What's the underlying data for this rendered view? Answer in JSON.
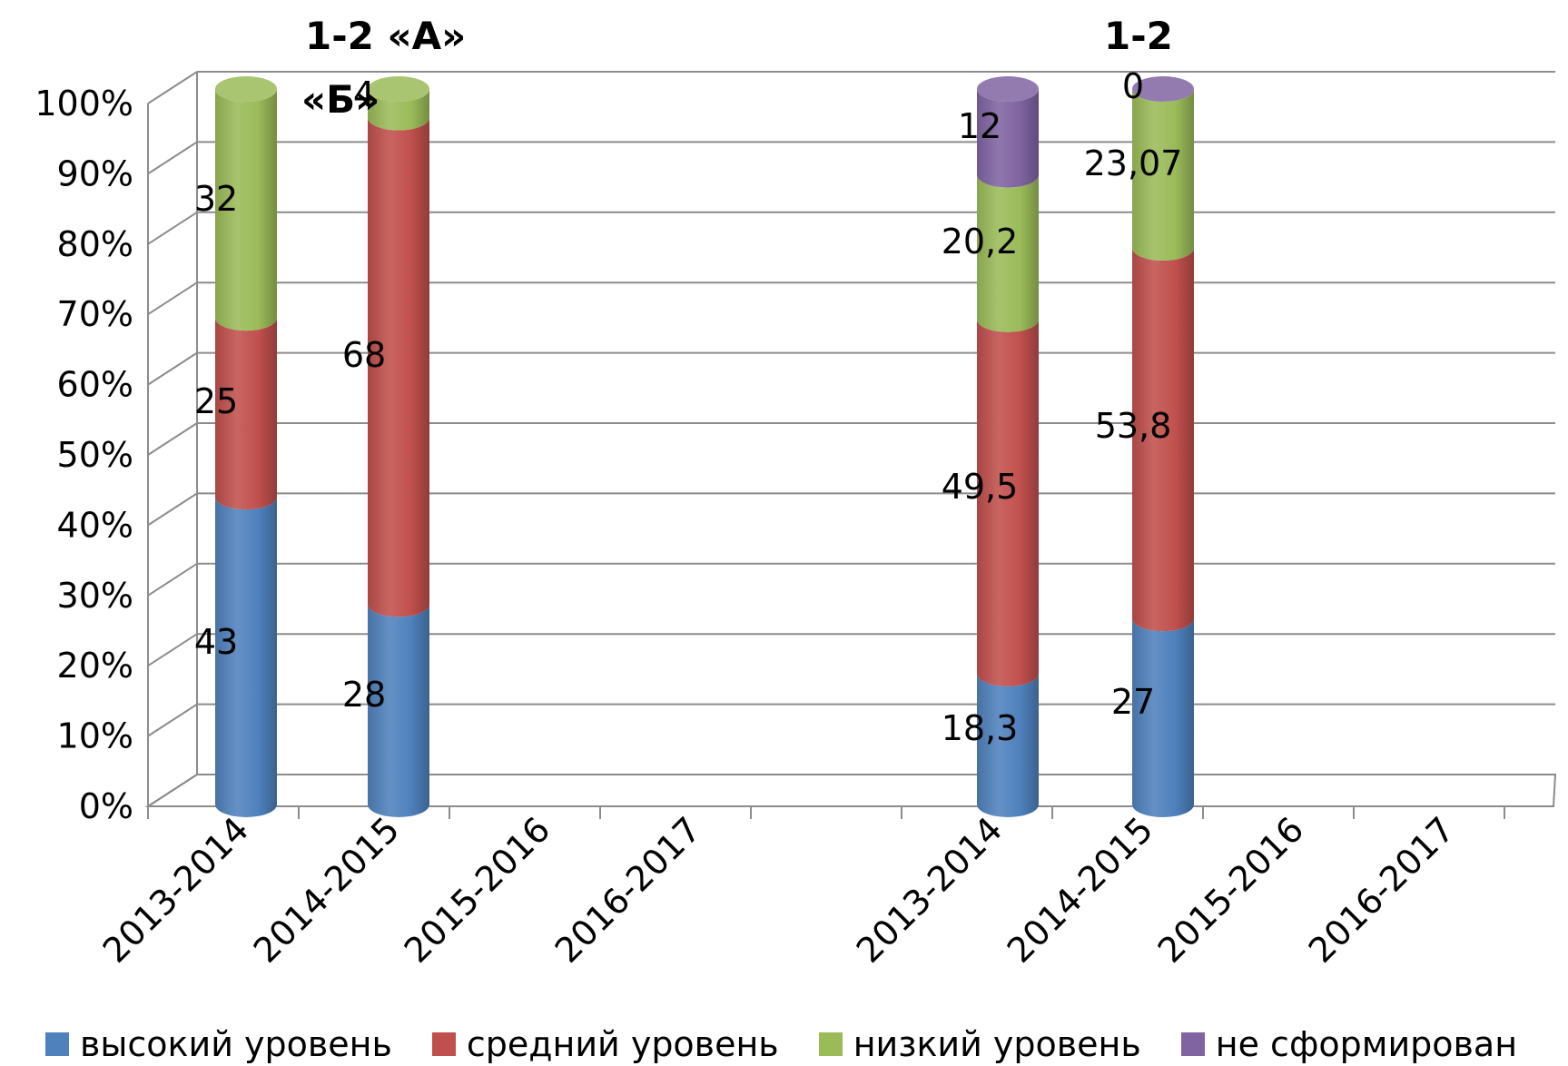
{
  "chart_data": {
    "type": "bar",
    "stacked": true,
    "percent": true,
    "groups": [
      {
        "title_line1": "1-2 «А»",
        "title_line2": "«Б»",
        "categories": [
          "2013-2014",
          "2014-2015",
          "2015-2016",
          "2016-2017"
        ],
        "series": [
          {
            "name": "высокий уровень",
            "values": [
              43,
              28,
              null,
              null
            ]
          },
          {
            "name": "средний уровень",
            "values": [
              25,
              68,
              null,
              null
            ]
          },
          {
            "name": "низкий уровень",
            "values": [
              32,
              4,
              null,
              null
            ]
          },
          {
            "name": "не сформирован",
            "values": [
              null,
              null,
              null,
              null
            ]
          }
        ]
      },
      {
        "title_line1": "1-2",
        "title_line2": "",
        "categories": [
          "2013-2014",
          "2014-2015",
          "2015-2016",
          "2016-2017"
        ],
        "series": [
          {
            "name": "высокий уровень",
            "values": [
              18.3,
              27,
              null,
              null
            ]
          },
          {
            "name": "средний уровень",
            "values": [
              49.5,
              53.8,
              null,
              null
            ]
          },
          {
            "name": "низкий уровень",
            "values": [
              20.2,
              23.07,
              null,
              null
            ]
          },
          {
            "name": "не сформирован",
            "values": [
              12,
              0,
              null,
              null
            ]
          }
        ]
      }
    ],
    "labels": [
      [
        "43",
        "28",
        "",
        ""
      ],
      [
        "25",
        "68",
        "",
        ""
      ],
      [
        "32",
        "4",
        "",
        ""
      ],
      [
        "",
        "",
        "",
        ""
      ],
      [
        "18,3",
        "27",
        "",
        ""
      ],
      [
        "49,5",
        "53,8",
        "",
        ""
      ],
      [
        "20,2",
        "23,07",
        "",
        ""
      ],
      [
        "12",
        "0",
        "",
        ""
      ]
    ],
    "yticks": [
      "0%",
      "10%",
      "20%",
      "30%",
      "40%",
      "50%",
      "60%",
      "70%",
      "80%",
      "90%",
      "100%"
    ],
    "ylim": [
      0,
      100
    ],
    "grid": true,
    "legend_position": "bottom",
    "colors": {
      "высокий уровень": "#4f81bd",
      "средний уровень": "#c0504d",
      "низкий уровень": "#9bbb59",
      "не сформирован": "#8064a2"
    }
  },
  "legend": [
    {
      "label": "высокий уровень",
      "color": "#4f81bd"
    },
    {
      "label": "средний уровень",
      "color": "#c0504d"
    },
    {
      "label": "низкий уровень",
      "color": "#9bbb59"
    },
    {
      "label": "не сформирован",
      "color": "#8064a2"
    }
  ]
}
